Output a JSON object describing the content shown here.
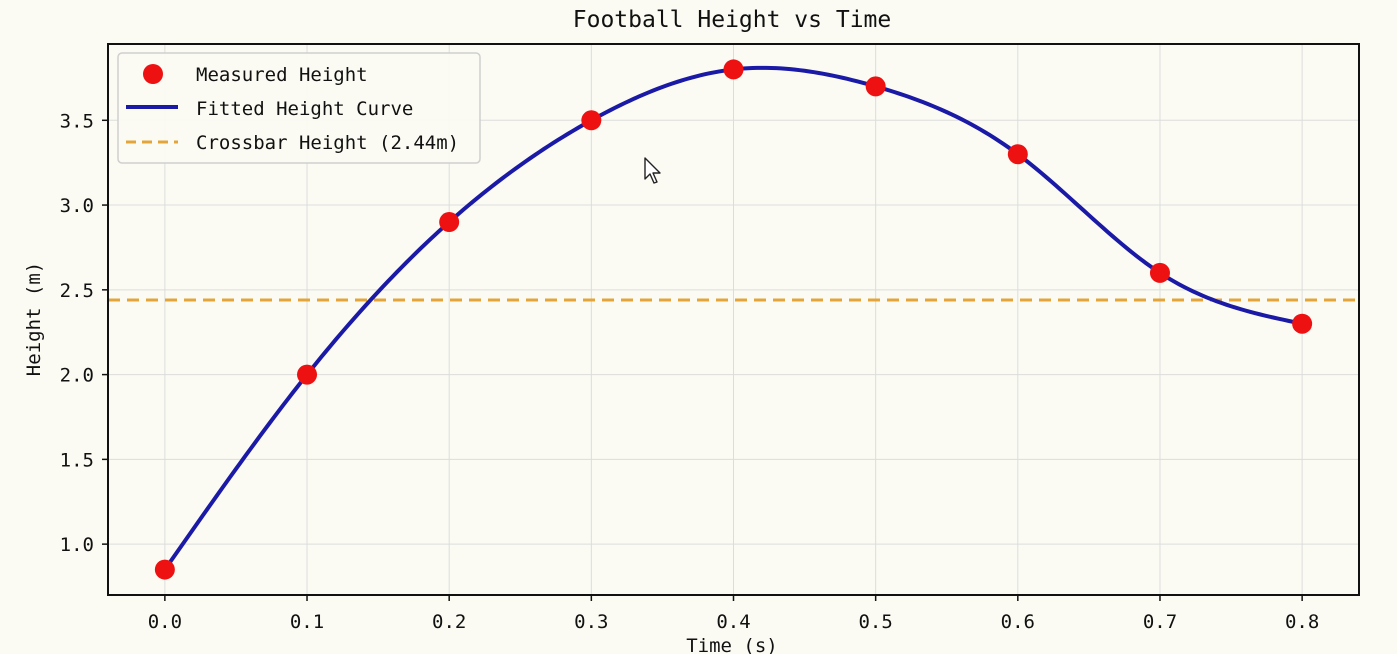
{
  "chart_data": {
    "type": "line",
    "title": "Football Height vs Time",
    "xlabel": "Time (s)",
    "ylabel": "Height (m)",
    "xlim": [
      -0.04,
      0.84
    ],
    "ylim": [
      0.7,
      3.95
    ],
    "x_ticks": [
      0.0,
      0.1,
      0.2,
      0.3,
      0.4,
      0.5,
      0.6,
      0.7,
      0.8
    ],
    "x_tick_labels": [
      "0.0",
      "0.1",
      "0.2",
      "0.3",
      "0.4",
      "0.5",
      "0.6",
      "0.7",
      "0.8"
    ],
    "y_ticks": [
      1.0,
      1.5,
      2.0,
      2.5,
      3.0,
      3.5
    ],
    "y_tick_labels": [
      "1.0",
      "1.5",
      "2.0",
      "2.5",
      "3.0",
      "3.5"
    ],
    "grid": true,
    "legend_position": "top-left",
    "series": [
      {
        "name": "Measured Height",
        "kind": "scatter",
        "color": "#ee1111",
        "x": [
          0.0,
          0.1,
          0.2,
          0.3,
          0.4,
          0.5,
          0.6,
          0.7,
          0.8
        ],
        "y": [
          0.85,
          2.0,
          2.9,
          3.5,
          3.8,
          3.7,
          3.3,
          2.6,
          2.3
        ]
      },
      {
        "name": "Fitted Height Curve",
        "kind": "line",
        "color": "#1a1aa6",
        "x": [
          0.0,
          0.1,
          0.2,
          0.3,
          0.4,
          0.5,
          0.6,
          0.7,
          0.8
        ],
        "y": [
          0.85,
          2.0,
          2.9,
          3.5,
          3.8,
          3.7,
          3.3,
          2.6,
          2.3
        ]
      },
      {
        "name": "Crossbar Height (2.44m)",
        "kind": "hline",
        "color": "#e3a53a",
        "y": 2.44
      }
    ]
  }
}
